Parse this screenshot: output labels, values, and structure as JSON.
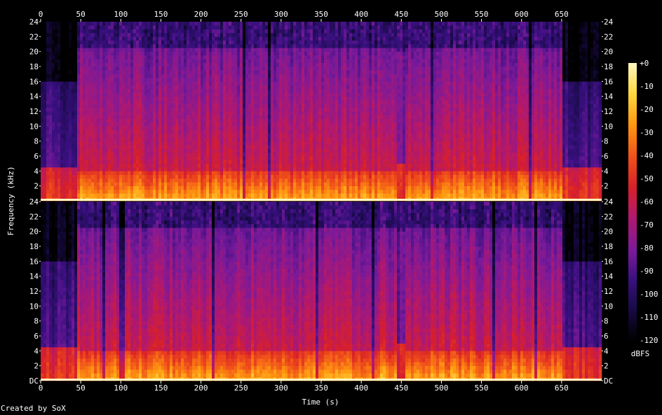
{
  "chart_data": {
    "type": "heatmap",
    "subtype": "spectrogram",
    "xlabel": "Time (s)",
    "ylabel": "Frequency (kHz)",
    "x_ticks": [
      "0",
      "50",
      "100",
      "150",
      "200",
      "250",
      "300",
      "350",
      "400",
      "450",
      "500",
      "550",
      "600",
      "650"
    ],
    "y_ticks": [
      "DC",
      "2",
      "4",
      "6",
      "8",
      "10",
      "12",
      "14",
      "16",
      "18",
      "20",
      "22",
      "24"
    ],
    "xlim": [
      0,
      700
    ],
    "ylim_khz": [
      0,
      24
    ],
    "channels": 2,
    "colorbar": {
      "label": "dBFS",
      "ticks": [
        "+0",
        "-10",
        "-20",
        "-30",
        "-40",
        "-50",
        "-60",
        "-70",
        "-80",
        "-90",
        "-100",
        "-110",
        "-120"
      ],
      "range_db": [
        -120,
        0
      ],
      "colors": [
        "#000000",
        "#1a0b4a",
        "#3a1080",
        "#7a1a9a",
        "#b01870",
        "#d8202a",
        "#f0501a",
        "#ff9a10",
        "#ffd840",
        "#fff8c0"
      ]
    },
    "segments": [
      {
        "t": [
          0,
          47
        ],
        "cutoff_khz": 16,
        "level": "quiet"
      },
      {
        "t": [
          47,
          170
        ],
        "cutoff_khz": 20.5,
        "level": "loud"
      },
      {
        "t": [
          170,
          312
        ],
        "cutoff_khz": 20.5,
        "level": "loud"
      },
      {
        "t": [
          312,
          445
        ],
        "cutoff_khz": 20.5,
        "level": "loud"
      },
      {
        "t": [
          445,
          455
        ],
        "cutoff_khz": 20,
        "level": "dip"
      },
      {
        "t": [
          455,
          650
        ],
        "cutoff_khz": 20.5,
        "level": "loud"
      },
      {
        "t": [
          650,
          700
        ],
        "cutoff_khz": 16,
        "level": "quiet"
      }
    ],
    "grid": false,
    "legend": "right colorbar"
  },
  "footer": {
    "credit": "Created by SoX"
  }
}
